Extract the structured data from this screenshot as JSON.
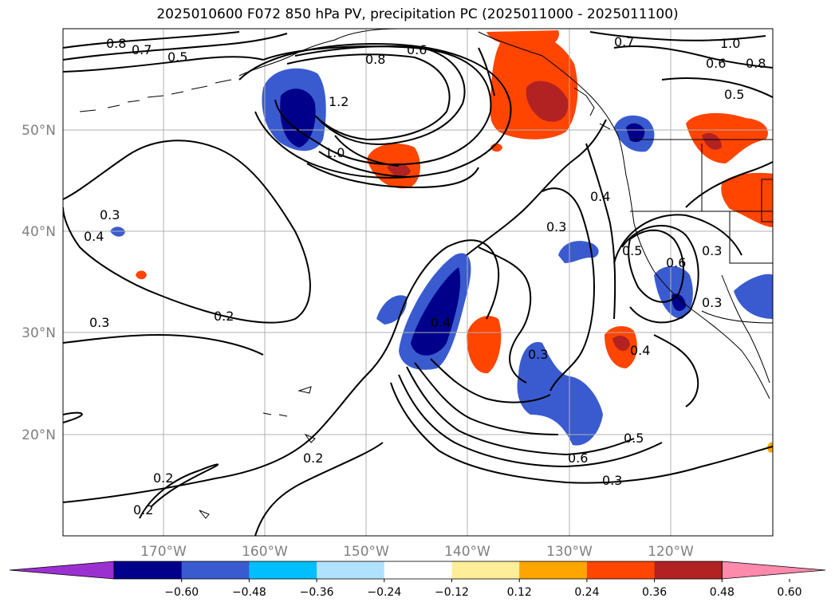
{
  "title": "2025010600 F072 850 hPa PV, precipitation PC (2025011000 - 2025011100)",
  "map": {
    "lon_labels": [
      "170°W",
      "160°W",
      "150°W",
      "140°W",
      "130°W",
      "120°W"
    ],
    "lat_labels": [
      "50°N",
      "40°N",
      "30°N",
      "20°N"
    ]
  },
  "colorbar": {
    "colors": [
      "#9b30d0",
      "#00008b",
      "#3a5bcf",
      "#00bfff",
      "#b0e2ff",
      "#ffffff",
      "#ffee99",
      "#ffa500",
      "#ff4500",
      "#b22222",
      "#ff8aab"
    ],
    "tick_labels": [
      "−0.60",
      "−0.48",
      "−0.36",
      "−0.24",
      "−0.12",
      "0.12",
      "0.24",
      "0.36",
      "0.48",
      "0.60"
    ]
  },
  "contour_labels": [
    "0.8",
    "0.7",
    "0.5",
    "0.6",
    "0.8",
    "0.7",
    "1.0",
    "0.6",
    "0.8",
    "0.5",
    "1.2",
    "1.0",
    "0.4",
    "0.3",
    "0.3",
    "0.4",
    "0.3",
    "0.2",
    "0.3",
    "0.5",
    "0.6",
    "0.4",
    "0.3",
    "0.3",
    "0.4",
    "0.5",
    "0.6",
    "0.3",
    "0.2",
    "0.2",
    "0.2"
  ]
}
